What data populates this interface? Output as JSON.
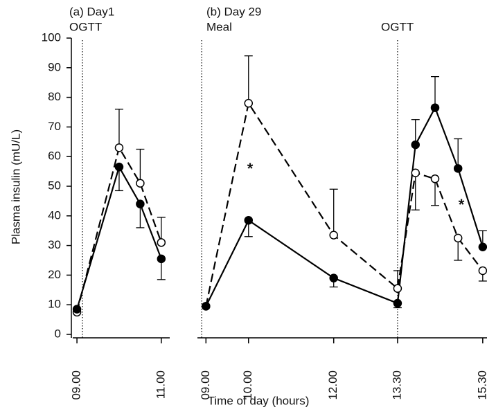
{
  "chart_data": [
    {
      "type": "line",
      "texts": [
        "(a) Day1",
        "OGTT"
      ],
      "ylabel": "Plasma insulin (mU/L)",
      "xlim": [
        8.9,
        11.2
      ],
      "xticks": [
        {
          "value": 9,
          "label": "09.00"
        },
        {
          "value": 11,
          "label": "11.00"
        }
      ],
      "ylim": [
        0,
        100
      ],
      "yticks": [
        0,
        10,
        20,
        30,
        40,
        50,
        60,
        70,
        80,
        90,
        100
      ],
      "vlines": [
        9.13
      ],
      "x": [
        9,
        10,
        10.5,
        11
      ],
      "series": [
        {
          "color": "#000000",
          "marker": "open",
          "dash": true,
          "values": [
            7.5,
            63,
            51,
            31
          ],
          "error_up": [
            null,
            13,
            11.5,
            8.5
          ],
          "error_down": [
            null,
            null,
            null,
            null
          ]
        },
        {
          "color": "#000000",
          "marker": "filled",
          "dash": false,
          "values": [
            8.5,
            56.5,
            44,
            25.5
          ],
          "error_up": [
            null,
            null,
            null,
            null
          ],
          "error_down": [
            null,
            8,
            8,
            7
          ]
        }
      ]
    },
    {
      "type": "line",
      "texts": [
        "(b) Day 29",
        "Meal",
        "OGTT",
        "*",
        "*"
      ],
      "xlabel": "Time of day (hours)",
      "xlim": [
        8.8,
        15.6
      ],
      "xticks": [
        {
          "value": 9,
          "label": "09.00"
        },
        {
          "value": 10,
          "label": "10.00"
        },
        {
          "value": 12,
          "label": "12.00"
        },
        {
          "value": 13.5,
          "label": "13.30"
        },
        {
          "value": 15.5,
          "label": "15.30"
        }
      ],
      "ylim": [
        0,
        100
      ],
      "vlines": [
        8.9,
        13.5
      ],
      "x": [
        9,
        10,
        12,
        13.5,
        13.92,
        14.38,
        14.92,
        15.5
      ],
      "series": [
        {
          "color": "#000000",
          "marker": "open",
          "dash": true,
          "values": [
            9.5,
            78,
            33.5,
            15.5,
            54.5,
            52.5,
            32.5,
            21.5
          ],
          "error_up": [
            null,
            16,
            15.5,
            6,
            null,
            null,
            null,
            null
          ],
          "error_down": [
            null,
            null,
            null,
            null,
            12.5,
            9,
            7.5,
            3.5
          ]
        },
        {
          "color": "#000000",
          "marker": "filled",
          "dash": false,
          "values": [
            9.5,
            38.5,
            19,
            10.5,
            64,
            76.5,
            56,
            29.5
          ],
          "error_up": [
            null,
            null,
            null,
            null,
            8.5,
            10.5,
            10,
            5.5
          ],
          "error_down": [
            null,
            5.5,
            3,
            1.5,
            null,
            null,
            null,
            null
          ]
        }
      ]
    }
  ]
}
